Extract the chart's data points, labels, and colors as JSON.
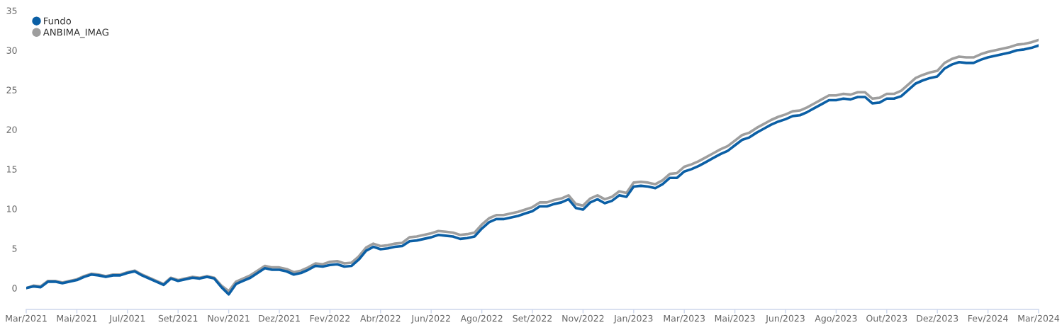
{
  "chart_data": {
    "type": "line",
    "categories": [
      "Mar/2021",
      null,
      null,
      null,
      null,
      null,
      null,
      "Mai/2021",
      null,
      null,
      null,
      null,
      null,
      null,
      "Jul/2021",
      null,
      null,
      null,
      null,
      null,
      null,
      "Set/2021",
      null,
      null,
      null,
      null,
      null,
      null,
      "Nov/2021",
      null,
      null,
      null,
      null,
      null,
      null,
      "Dez/2021",
      null,
      null,
      null,
      null,
      null,
      null,
      "Fev/2022",
      null,
      null,
      null,
      null,
      null,
      null,
      "Abr/2022",
      null,
      null,
      null,
      null,
      null,
      null,
      "Jun/2022",
      null,
      null,
      null,
      null,
      null,
      null,
      "Ago/2022",
      null,
      null,
      null,
      null,
      null,
      null,
      "Set/2022",
      null,
      null,
      null,
      null,
      null,
      null,
      "Nov/2022",
      null,
      null,
      null,
      null,
      null,
      null,
      "Jan/2023",
      null,
      null,
      null,
      null,
      null,
      null,
      "Mar/2023",
      null,
      null,
      null,
      null,
      null,
      null,
      "Mai/2023",
      null,
      null,
      null,
      null,
      null,
      null,
      "Jun/2023",
      null,
      null,
      null,
      null,
      null,
      null,
      "Ago/2023",
      null,
      null,
      null,
      null,
      null,
      null,
      "Out/2023",
      null,
      null,
      null,
      null,
      null,
      null,
      "Dez/2023",
      null,
      null,
      null,
      null,
      null,
      null,
      "Fev/2024",
      null,
      null,
      null,
      null,
      null,
      null,
      "Mar/2024"
    ],
    "series": [
      {
        "name": "Fundo",
        "color": "#0b5fa5",
        "values": [
          0.0,
          0.2,
          0.1,
          0.8,
          0.8,
          0.6,
          0.8,
          1.0,
          1.4,
          1.7,
          1.6,
          1.4,
          1.6,
          1.6,
          1.9,
          2.1,
          1.6,
          1.2,
          0.8,
          0.4,
          1.2,
          0.9,
          1.1,
          1.3,
          1.2,
          1.4,
          1.2,
          0.1,
          -0.8,
          0.5,
          0.9,
          1.3,
          1.9,
          2.5,
          2.3,
          2.3,
          2.1,
          1.7,
          1.9,
          2.3,
          2.8,
          2.7,
          2.9,
          3.0,
          2.7,
          2.8,
          3.6,
          4.7,
          5.2,
          4.9,
          5.0,
          5.2,
          5.3,
          5.9,
          6.0,
          6.2,
          6.4,
          6.7,
          6.6,
          6.5,
          6.2,
          6.3,
          6.5,
          7.5,
          8.3,
          8.7,
          8.7,
          8.9,
          9.1,
          9.4,
          9.7,
          10.3,
          10.3,
          10.6,
          10.8,
          11.2,
          10.1,
          9.9,
          10.8,
          11.2,
          10.7,
          11.0,
          11.7,
          11.5,
          12.8,
          12.9,
          12.8,
          12.6,
          13.1,
          13.9,
          13.9,
          14.7,
          15.0,
          15.4,
          15.9,
          16.4,
          16.9,
          17.3,
          18.0,
          18.7,
          19.0,
          19.6,
          20.1,
          20.6,
          21.0,
          21.3,
          21.7,
          21.8,
          22.2,
          22.7,
          23.2,
          23.7,
          23.7,
          23.9,
          23.8,
          24.1,
          24.1,
          23.3,
          23.4,
          23.9,
          23.9,
          24.2,
          25.0,
          25.8,
          26.2,
          26.5,
          26.7,
          27.7,
          28.2,
          28.5,
          28.4,
          28.4,
          28.8,
          29.1,
          29.3,
          29.5,
          29.7,
          30.0,
          30.1,
          30.3,
          30.6
        ]
      },
      {
        "name": "ANBIMA_IMAG",
        "color": "#9e9e9e",
        "values": [
          0.0,
          0.3,
          0.2,
          0.9,
          0.9,
          0.7,
          0.9,
          1.1,
          1.5,
          1.8,
          1.7,
          1.5,
          1.7,
          1.7,
          2.0,
          2.2,
          1.7,
          1.3,
          0.9,
          0.5,
          1.3,
          1.0,
          1.2,
          1.4,
          1.3,
          1.5,
          1.3,
          0.3,
          -0.4,
          0.8,
          1.2,
          1.6,
          2.2,
          2.8,
          2.6,
          2.6,
          2.4,
          2.0,
          2.2,
          2.6,
          3.1,
          3.0,
          3.3,
          3.4,
          3.1,
          3.2,
          4.0,
          5.1,
          5.6,
          5.3,
          5.4,
          5.6,
          5.7,
          6.4,
          6.5,
          6.7,
          6.9,
          7.2,
          7.1,
          7.0,
          6.7,
          6.8,
          7.0,
          8.0,
          8.8,
          9.2,
          9.2,
          9.4,
          9.6,
          9.9,
          10.2,
          10.8,
          10.8,
          11.1,
          11.3,
          11.7,
          10.6,
          10.4,
          11.3,
          11.7,
          11.2,
          11.5,
          12.2,
          12.0,
          13.3,
          13.4,
          13.3,
          13.1,
          13.6,
          14.4,
          14.5,
          15.3,
          15.6,
          16.0,
          16.5,
          17.0,
          17.5,
          17.9,
          18.6,
          19.3,
          19.6,
          20.2,
          20.7,
          21.2,
          21.6,
          21.9,
          22.3,
          22.4,
          22.8,
          23.3,
          23.8,
          24.3,
          24.3,
          24.5,
          24.4,
          24.7,
          24.7,
          23.9,
          24.0,
          24.5,
          24.5,
          24.9,
          25.7,
          26.5,
          26.9,
          27.2,
          27.4,
          28.4,
          28.9,
          29.2,
          29.1,
          29.1,
          29.5,
          29.8,
          30.0,
          30.2,
          30.4,
          30.7,
          30.8,
          31.0,
          31.3
        ]
      }
    ],
    "ylim": [
      -2.7,
      35
    ],
    "yticks": [
      0,
      5,
      10,
      15,
      20,
      25,
      30,
      35
    ],
    "grid": false,
    "legend": "top left"
  }
}
